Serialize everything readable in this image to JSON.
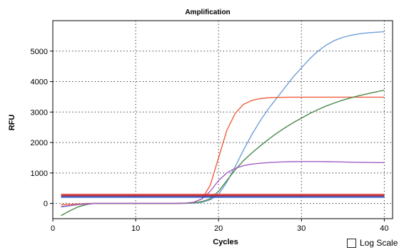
{
  "chart_data": {
    "type": "line",
    "title": "Amplification",
    "xlabel": "Cycles",
    "ylabel": "RFU",
    "xlim": [
      0,
      41
    ],
    "ylim": [
      -500,
      6000
    ],
    "xticks": [
      0,
      10,
      20,
      30,
      40
    ],
    "yticks": [
      0,
      1000,
      2000,
      3000,
      4000,
      5000
    ],
    "grid": true,
    "x": [
      1,
      2,
      3,
      4,
      5,
      6,
      7,
      8,
      9,
      10,
      11,
      12,
      13,
      14,
      15,
      16,
      17,
      18,
      19,
      20,
      21,
      22,
      23,
      24,
      25,
      26,
      27,
      28,
      29,
      30,
      31,
      32,
      33,
      34,
      35,
      36,
      37,
      38,
      39,
      40
    ],
    "series": [
      {
        "color": "#6f9fd6",
        "values": [
          -120,
          -80,
          -40,
          0,
          0,
          0,
          0,
          0,
          0,
          0,
          0,
          0,
          0,
          0,
          0,
          5,
          15,
          40,
          120,
          300,
          700,
          1200,
          1750,
          2250,
          2700,
          3100,
          3450,
          3800,
          4150,
          4450,
          4750,
          5000,
          5200,
          5350,
          5450,
          5520,
          5570,
          5600,
          5620,
          5640
        ]
      },
      {
        "color": "#f06040",
        "values": [
          -40,
          -30,
          -20,
          -10,
          0,
          0,
          0,
          0,
          0,
          0,
          0,
          0,
          0,
          0,
          0,
          10,
          40,
          150,
          600,
          1500,
          2400,
          2950,
          3250,
          3380,
          3440,
          3470,
          3480,
          3485,
          3490,
          3490,
          3490,
          3490,
          3490,
          3490,
          3490,
          3490,
          3490,
          3490,
          3490,
          3490
        ]
      },
      {
        "color": "#4a8a4a",
        "values": [
          -400,
          -250,
          -120,
          -40,
          0,
          0,
          0,
          0,
          0,
          0,
          0,
          0,
          0,
          0,
          0,
          5,
          20,
          60,
          150,
          400,
          750,
          1100,
          1400,
          1650,
          1880,
          2100,
          2300,
          2480,
          2650,
          2800,
          2950,
          3080,
          3200,
          3300,
          3390,
          3470,
          3540,
          3600,
          3660,
          3720
        ]
      },
      {
        "color": "#a060c0",
        "values": [
          -100,
          -70,
          -40,
          -20,
          0,
          0,
          0,
          0,
          0,
          0,
          0,
          0,
          0,
          0,
          0,
          10,
          40,
          150,
          400,
          750,
          1000,
          1150,
          1240,
          1290,
          1320,
          1340,
          1355,
          1365,
          1370,
          1375,
          1375,
          1375,
          1370,
          1365,
          1360,
          1355,
          1350,
          1345,
          1340,
          1340
        ]
      },
      {
        "color": "#e03030",
        "values": [
          300,
          300,
          300,
          300,
          300,
          300,
          300,
          300,
          300,
          300,
          300,
          300,
          300,
          300,
          300,
          300,
          300,
          300,
          300,
          300,
          300,
          300,
          300,
          300,
          300,
          300,
          300,
          300,
          300,
          300,
          300,
          300,
          300,
          300,
          300,
          300,
          300,
          300,
          300,
          300
        ]
      },
      {
        "color": "#2a3ca0",
        "values": [
          240,
          240,
          240,
          240,
          240,
          240,
          240,
          240,
          240,
          240,
          240,
          240,
          240,
          240,
          240,
          240,
          240,
          240,
          240,
          240,
          240,
          240,
          240,
          240,
          240,
          240,
          240,
          240,
          240,
          240,
          240,
          240,
          240,
          240,
          240,
          240,
          240,
          240,
          240,
          240
        ]
      },
      {
        "color": "#3050c8",
        "values": [
          200,
          200,
          200,
          200,
          200,
          200,
          200,
          200,
          200,
          200,
          200,
          200,
          200,
          200,
          200,
          200,
          200,
          200,
          200,
          200,
          200,
          200,
          200,
          200,
          200,
          200,
          200,
          200,
          200,
          200,
          200,
          200,
          200,
          200,
          200,
          200,
          200,
          200,
          200,
          200
        ]
      },
      {
        "color": "#c02828",
        "values": [
          260,
          260,
          260,
          260,
          260,
          260,
          260,
          260,
          260,
          260,
          260,
          260,
          260,
          260,
          260,
          260,
          260,
          260,
          260,
          260,
          260,
          260,
          260,
          260,
          260,
          260,
          260,
          260,
          260,
          260,
          260,
          260,
          260,
          260,
          260,
          260,
          260,
          260,
          260,
          260
        ]
      }
    ]
  },
  "log_scale": {
    "label": "Log Scale",
    "checked": false
  }
}
